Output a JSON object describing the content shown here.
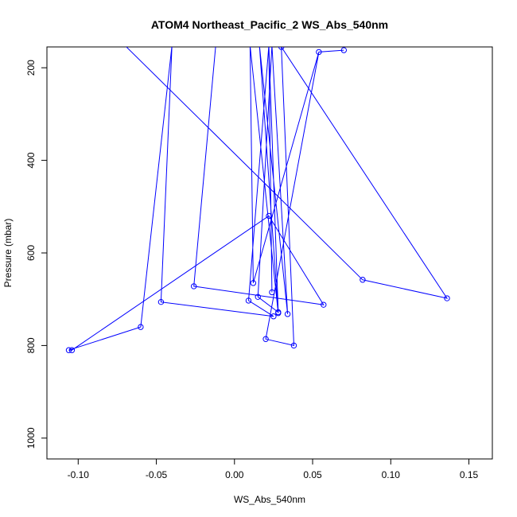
{
  "chart_data": {
    "type": "line",
    "title": "ATOM4 Northeast_Pacific_2 WS_Abs_540nm",
    "xlabel": "WS_Abs_540nm",
    "ylabel": "Pressure (mbar)",
    "xlim": [
      -0.12,
      0.165
    ],
    "ylim": [
      1045,
      155
    ],
    "y_reversed": true,
    "grid": false,
    "legend": "none",
    "x_ticks": [
      -0.1,
      -0.05,
      0.0,
      0.05,
      0.1,
      0.15
    ],
    "x_tick_labels": [
      "-0.10",
      "-0.05",
      "0.00",
      "0.05",
      "0.10",
      "0.15"
    ],
    "y_ticks": [
      200,
      400,
      600,
      800,
      1000
    ],
    "y_tick_labels": [
      "200",
      "400",
      "600",
      "800",
      "1000"
    ],
    "series": [
      {
        "color": "#0000ff",
        "marker": "open-circle",
        "points": [
          {
            "x": -0.07,
            "y": 152,
            "marker": false
          },
          {
            "x": 0.082,
            "y": 658,
            "marker": true
          },
          {
            "x": 0.136,
            "y": 698,
            "marker": true
          },
          {
            "x": 0.03,
            "y": 155,
            "marker": true
          },
          {
            "x": 0.038,
            "y": 800,
            "marker": true
          },
          {
            "x": 0.02,
            "y": 786,
            "marker": true
          },
          {
            "x": 0.054,
            "y": 166,
            "marker": true
          },
          {
            "x": 0.07,
            "y": 162,
            "marker": true
          },
          {
            "x": 0.054,
            "y": 166,
            "marker": false
          },
          {
            "x": 0.012,
            "y": 665,
            "marker": true
          },
          {
            "x": 0.01,
            "y": 152,
            "marker": false
          },
          {
            "x": 0.028,
            "y": 730,
            "marker": true
          },
          {
            "x": 0.016,
            "y": 152,
            "marker": false
          },
          {
            "x": 0.034,
            "y": 732,
            "marker": true
          },
          {
            "x": 0.024,
            "y": 152,
            "marker": false
          },
          {
            "x": 0.015,
            "y": 695,
            "marker": true
          },
          {
            "x": 0.028,
            "y": 728,
            "marker": true
          },
          {
            "x": 0.022,
            "y": 152,
            "marker": false
          },
          {
            "x": 0.024,
            "y": 685,
            "marker": true
          },
          {
            "x": 0.022,
            "y": 152,
            "marker": false
          },
          {
            "x": 0.009,
            "y": 703,
            "marker": true
          },
          {
            "x": 0.025,
            "y": 737,
            "marker": true
          },
          {
            "x": -0.047,
            "y": 706,
            "marker": true
          },
          {
            "x": -0.04,
            "y": 152,
            "marker": false
          },
          {
            "x": -0.06,
            "y": 760,
            "marker": true
          },
          {
            "x": -0.106,
            "y": 810,
            "marker": true
          },
          {
            "x": -0.104,
            "y": 810,
            "marker": true
          },
          {
            "x": 0.022,
            "y": 520,
            "marker": true
          },
          {
            "x": 0.057,
            "y": 712,
            "marker": true
          },
          {
            "x": -0.026,
            "y": 672,
            "marker": true
          },
          {
            "x": -0.012,
            "y": 152,
            "marker": false
          },
          {
            "x": 0.005,
            "y": 152,
            "marker": false
          },
          {
            "x": 0.02,
            "y": 152,
            "marker": false
          }
        ]
      }
    ]
  }
}
